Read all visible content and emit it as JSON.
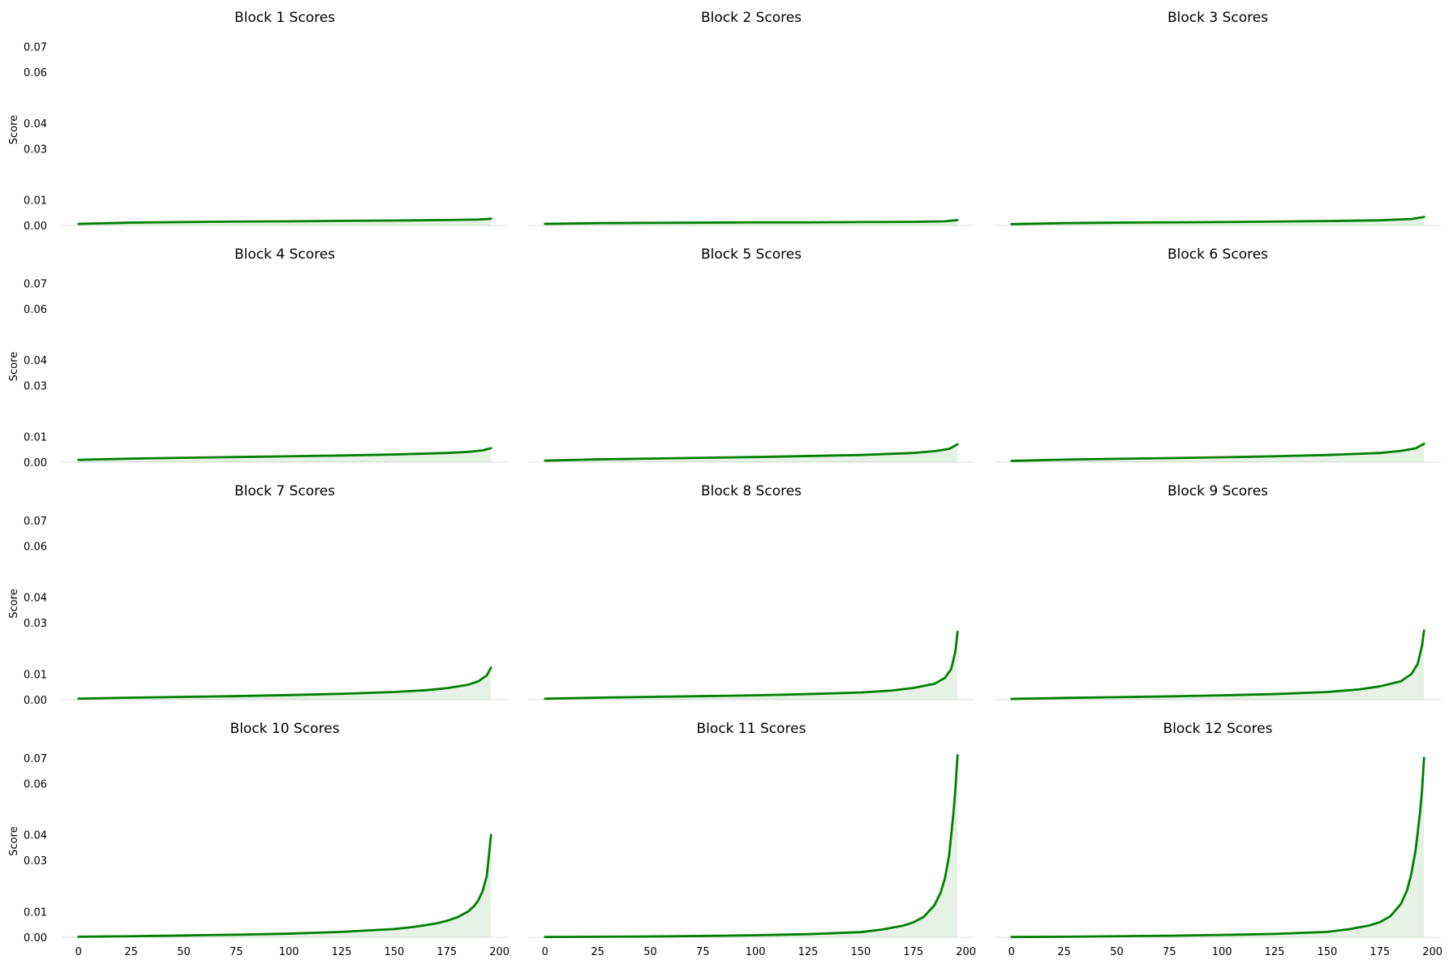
{
  "chart_data": {
    "type": "area",
    "layout": {
      "rows": 4,
      "cols": 3
    },
    "style": {
      "line_color": "#008000",
      "fill_color": "#008000",
      "fill_opacity": 0.1,
      "baseline_color": "#dddddd",
      "grid": false
    },
    "shared_axes": {
      "xlim": [
        -8,
        204
      ],
      "ylim": [
        0,
        0.075
      ],
      "xticks": [
        0,
        25,
        50,
        75,
        100,
        125,
        150,
        175,
        200
      ],
      "xtick_labels": [
        "0",
        "25",
        "50",
        "75",
        "100",
        "125",
        "150",
        "175",
        "200"
      ],
      "yticks": [
        0.0,
        0.01,
        0.03,
        0.04,
        0.06,
        0.07
      ],
      "ytick_labels": [
        "0.00",
        "0.01",
        "0.03",
        "0.04",
        "0.06",
        "0.07"
      ],
      "ylabel": "Score"
    },
    "panels": [
      {
        "title": "Block 1 Scores",
        "x": [
          0,
          25,
          50,
          75,
          100,
          125,
          150,
          175,
          190,
          196
        ],
        "y": [
          0.0006,
          0.0011,
          0.0013,
          0.0015,
          0.0016,
          0.0018,
          0.0019,
          0.0021,
          0.0023,
          0.0026
        ]
      },
      {
        "title": "Block 2 Scores",
        "x": [
          0,
          25,
          50,
          75,
          100,
          125,
          150,
          175,
          190,
          196
        ],
        "y": [
          0.0006,
          0.0009,
          0.001,
          0.0011,
          0.0012,
          0.0012,
          0.0013,
          0.0014,
          0.0016,
          0.0021
        ]
      },
      {
        "title": "Block 3 Scores",
        "x": [
          0,
          25,
          50,
          75,
          100,
          125,
          150,
          175,
          190,
          196
        ],
        "y": [
          0.0005,
          0.0009,
          0.0011,
          0.0012,
          0.0013,
          0.0015,
          0.0017,
          0.002,
          0.0025,
          0.0033
        ]
      },
      {
        "title": "Block 4 Scores",
        "x": [
          0,
          25,
          50,
          75,
          100,
          125,
          150,
          175,
          185,
          192,
          196
        ],
        "y": [
          0.0009,
          0.0014,
          0.0017,
          0.002,
          0.0023,
          0.0026,
          0.003,
          0.0036,
          0.004,
          0.0046,
          0.0055
        ]
      },
      {
        "title": "Block 5 Scores",
        "x": [
          0,
          25,
          50,
          75,
          100,
          125,
          150,
          175,
          185,
          192,
          196
        ],
        "y": [
          0.0006,
          0.0011,
          0.0014,
          0.0017,
          0.002,
          0.0024,
          0.0028,
          0.0036,
          0.0043,
          0.0052,
          0.007
        ]
      },
      {
        "title": "Block 6 Scores",
        "x": [
          0,
          25,
          50,
          75,
          100,
          125,
          150,
          175,
          185,
          192,
          196
        ],
        "y": [
          0.0005,
          0.001,
          0.0013,
          0.0016,
          0.0019,
          0.0023,
          0.0028,
          0.0036,
          0.0044,
          0.0054,
          0.0072
        ]
      },
      {
        "title": "Block 7 Scores",
        "x": [
          0,
          25,
          50,
          75,
          100,
          125,
          150,
          165,
          175,
          185,
          190,
          194,
          196
        ],
        "y": [
          0.0004,
          0.0008,
          0.0011,
          0.0014,
          0.0018,
          0.0023,
          0.003,
          0.0037,
          0.0045,
          0.0058,
          0.0072,
          0.0095,
          0.0125
        ]
      },
      {
        "title": "Block 8 Scores",
        "x": [
          0,
          25,
          50,
          75,
          100,
          125,
          150,
          165,
          175,
          185,
          190,
          193,
          195,
          196
        ],
        "y": [
          0.0004,
          0.0008,
          0.0011,
          0.0014,
          0.0017,
          0.0022,
          0.0028,
          0.0036,
          0.0046,
          0.0062,
          0.0085,
          0.012,
          0.019,
          0.0265
        ]
      },
      {
        "title": "Block 9 Scores",
        "x": [
          0,
          25,
          50,
          75,
          100,
          125,
          150,
          165,
          175,
          185,
          190,
          193,
          195,
          196
        ],
        "y": [
          0.0003,
          0.0007,
          0.001,
          0.0013,
          0.0017,
          0.0022,
          0.003,
          0.004,
          0.0052,
          0.0072,
          0.01,
          0.014,
          0.021,
          0.027
        ]
      },
      {
        "title": "Block 10 Scores",
        "x": [
          0,
          25,
          50,
          75,
          100,
          125,
          150,
          160,
          170,
          175,
          180,
          185,
          188,
          190,
          192,
          194,
          195,
          196
        ],
        "y": [
          0.0002,
          0.0004,
          0.0007,
          0.001,
          0.0014,
          0.0021,
          0.0032,
          0.0041,
          0.0054,
          0.0064,
          0.0078,
          0.01,
          0.0122,
          0.0145,
          0.018,
          0.024,
          0.032,
          0.04
        ]
      },
      {
        "title": "Block 11 Scores",
        "x": [
          0,
          25,
          50,
          75,
          100,
          125,
          150,
          160,
          170,
          175,
          180,
          185,
          188,
          190,
          192,
          193,
          194,
          195,
          196
        ],
        "y": [
          0.0001,
          0.0002,
          0.0003,
          0.0005,
          0.0008,
          0.0012,
          0.002,
          0.003,
          0.0045,
          0.0058,
          0.008,
          0.0125,
          0.0175,
          0.023,
          0.032,
          0.04,
          0.048,
          0.058,
          0.071
        ]
      },
      {
        "title": "Block 12 Scores",
        "x": [
          0,
          25,
          50,
          75,
          100,
          125,
          150,
          160,
          170,
          175,
          180,
          185,
          188,
          190,
          192,
          193,
          194,
          195,
          196
        ],
        "y": [
          0.0001,
          0.0002,
          0.0004,
          0.0006,
          0.0009,
          0.0013,
          0.0021,
          0.0031,
          0.0046,
          0.0059,
          0.0082,
          0.013,
          0.0185,
          0.025,
          0.034,
          0.041,
          0.048,
          0.057,
          0.07
        ]
      }
    ]
  }
}
